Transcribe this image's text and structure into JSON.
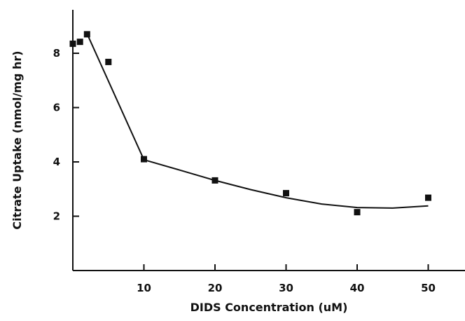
{
  "chart_data": {
    "type": "scatter",
    "title": "",
    "xlabel": "DIDS Concentration (uM)",
    "ylabel": "Citrate Uptake (nmol/mg hr)",
    "xlim": [
      0,
      55
    ],
    "ylim": [
      0,
      9.5
    ],
    "x_ticks": [
      "10",
      "20",
      "30",
      "40",
      "50"
    ],
    "y_ticks": [
      "2",
      "4",
      "6",
      "8"
    ],
    "grid": false,
    "points": [
      {
        "x": 0,
        "y": 8.35
      },
      {
        "x": 1,
        "y": 8.42
      },
      {
        "x": 2,
        "y": 8.7
      },
      {
        "x": 5,
        "y": 7.68
      },
      {
        "x": 10,
        "y": 4.1
      },
      {
        "x": 20,
        "y": 3.32
      },
      {
        "x": 30,
        "y": 2.85
      },
      {
        "x": 40,
        "y": 2.15
      },
      {
        "x": 50,
        "y": 2.68
      }
    ],
    "fit_line": [
      {
        "x": 2,
        "y": 8.72
      },
      {
        "x": 10,
        "y": 4.08
      },
      {
        "x": 15,
        "y": 3.7
      },
      {
        "x": 20,
        "y": 3.32
      },
      {
        "x": 25,
        "y": 2.98
      },
      {
        "x": 30,
        "y": 2.68
      },
      {
        "x": 35,
        "y": 2.45
      },
      {
        "x": 40,
        "y": 2.32
      },
      {
        "x": 45,
        "y": 2.3
      },
      {
        "x": 50,
        "y": 2.38
      }
    ]
  }
}
